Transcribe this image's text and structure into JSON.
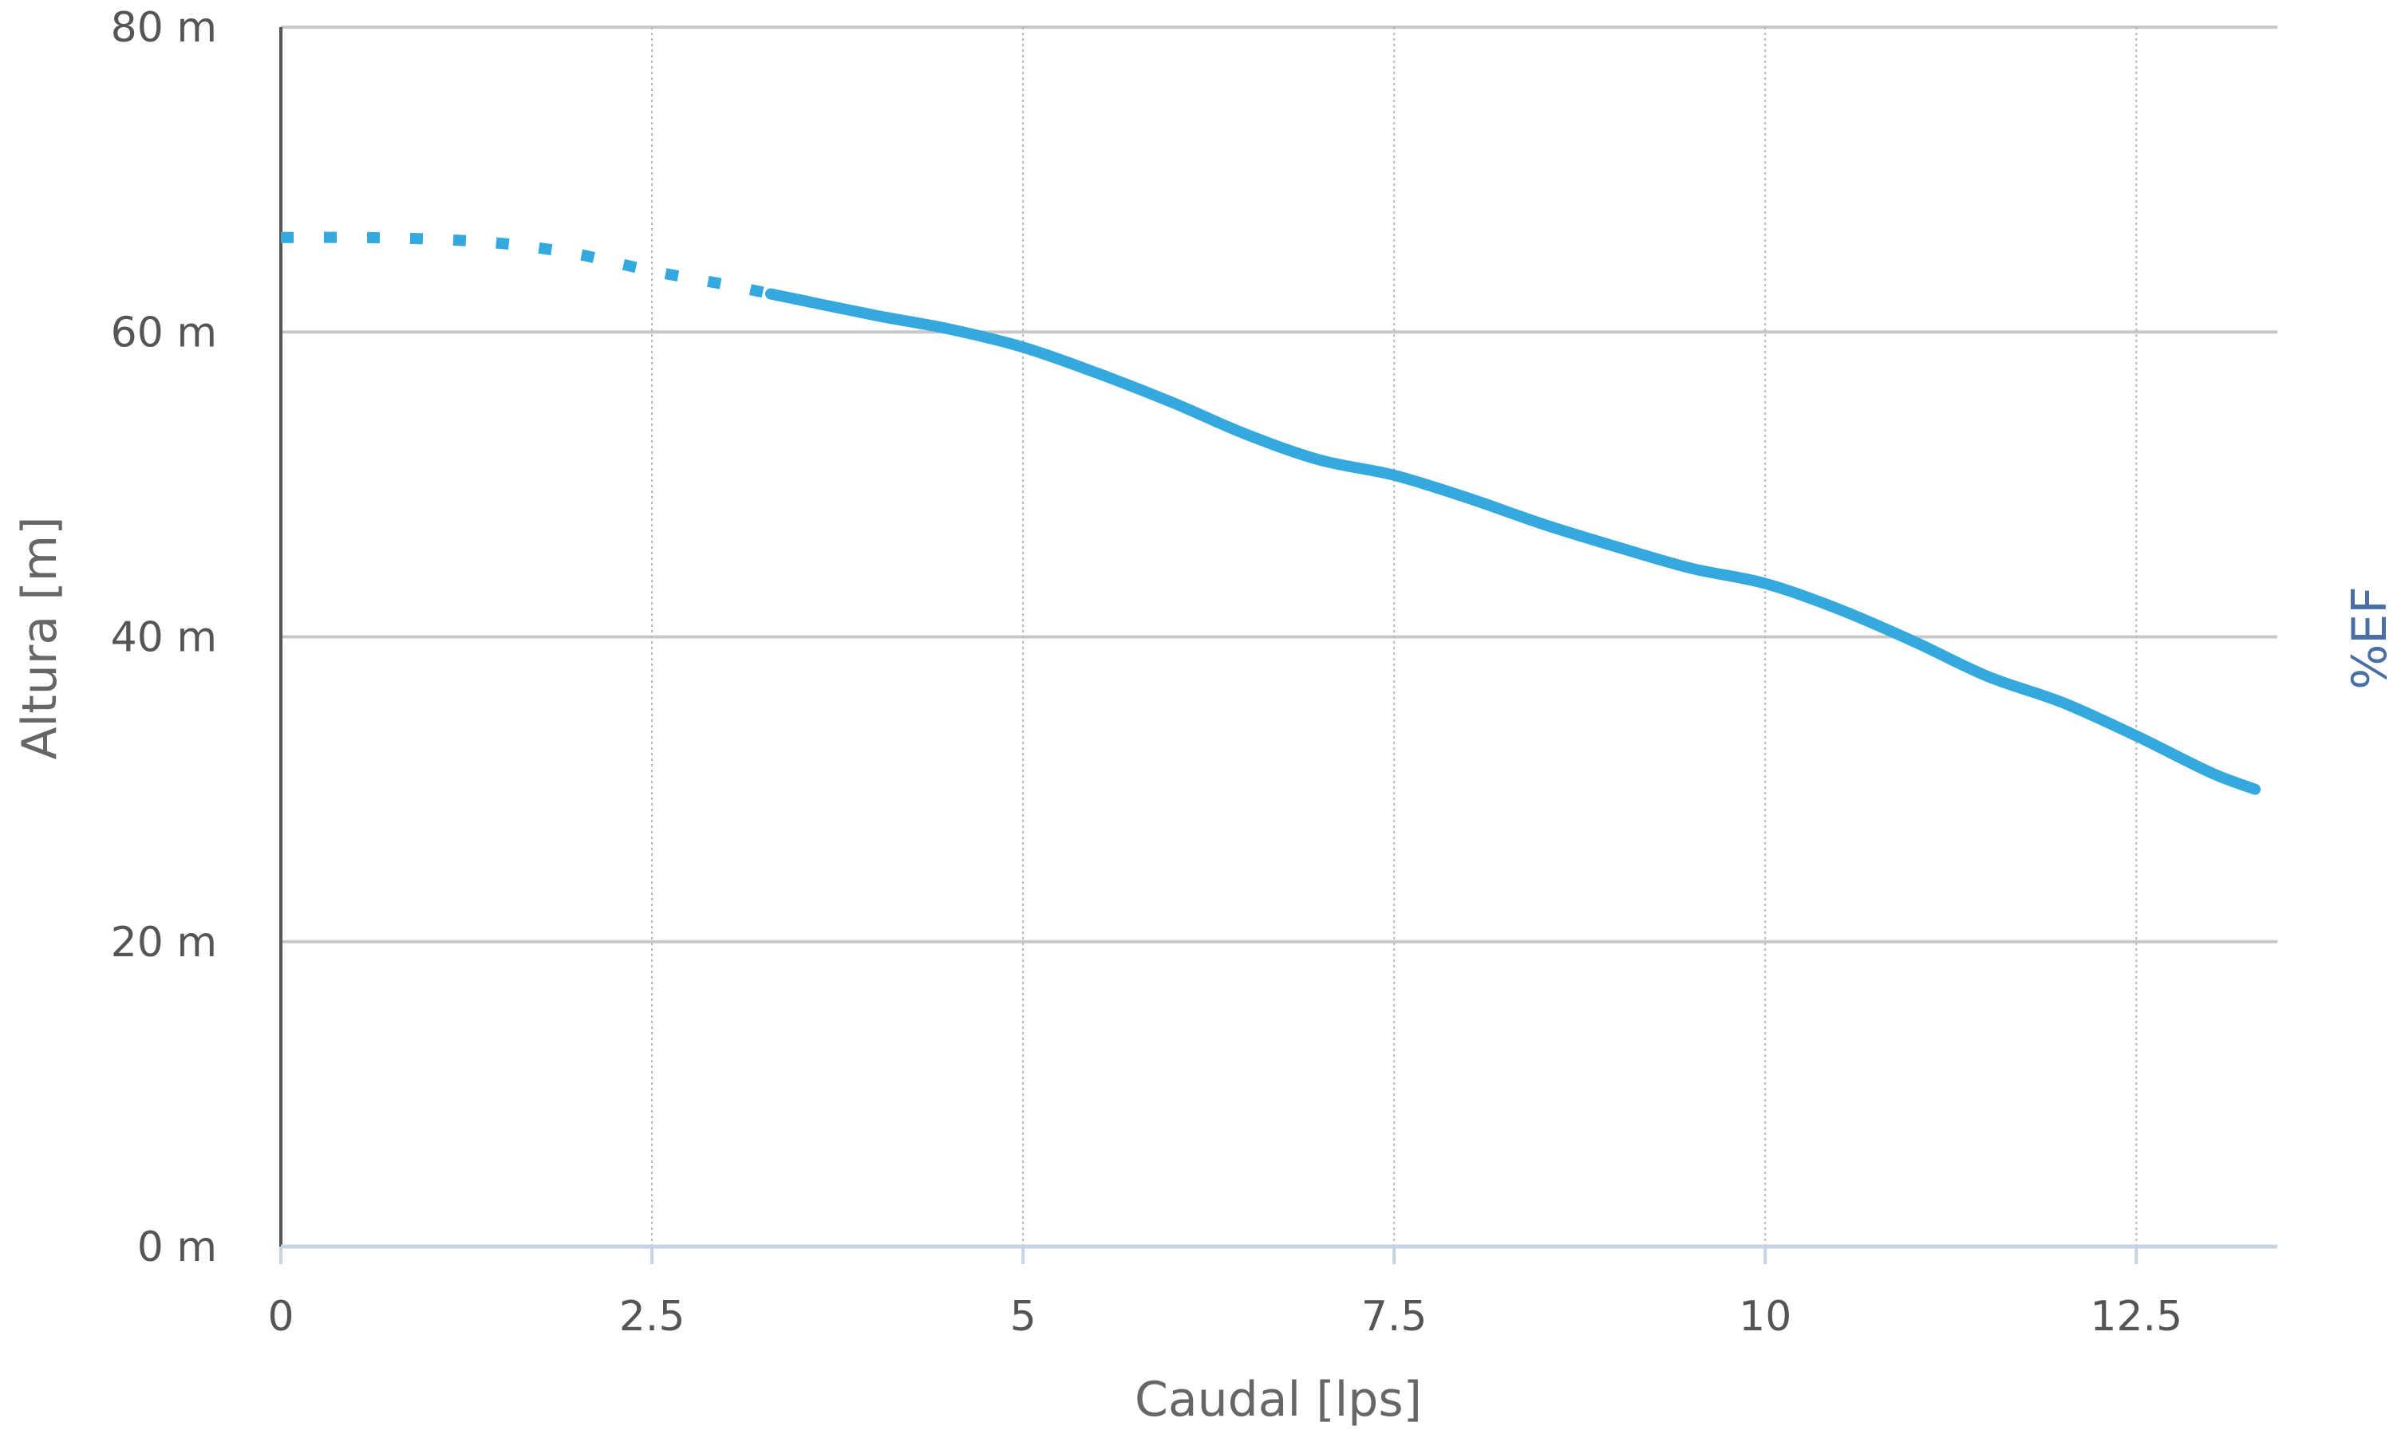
{
  "chart_data": {
    "type": "line",
    "title": "",
    "xlabel": "Caudal [lps]",
    "ylabel": "Altura [m]",
    "y2label": "%EF",
    "xlim": [
      0,
      13.45
    ],
    "ylim": [
      0,
      80
    ],
    "x_ticks": [
      "0",
      "2.5",
      "5",
      "7.5",
      "10",
      "12.5"
    ],
    "x_tick_values": [
      0,
      2.5,
      5,
      7.5,
      10,
      12.5
    ],
    "y_ticks": [
      "0 m",
      "20 m",
      "40 m",
      "60 m",
      "80 m"
    ],
    "y_tick_values": [
      0,
      20,
      40,
      60,
      80
    ],
    "grid": true,
    "colors": {
      "series": "#35a9dd",
      "y2label": "#4a6fa5",
      "grid": "#c8c8c8",
      "xaxis": "#c5d3e3",
      "yaxis": "#555555"
    },
    "series": [
      {
        "style": "dotted",
        "x": [
          0,
          0.5,
          1.0,
          1.5,
          2.0,
          2.5,
          3.0,
          3.3
        ],
        "y": [
          66.2,
          66.2,
          66.1,
          65.8,
          65.1,
          64.0,
          63.1,
          62.5
        ]
      },
      {
        "style": "solid",
        "x": [
          3.3,
          4.0,
          4.5,
          5.0,
          5.5,
          6.0,
          6.5,
          7.0,
          7.5,
          8.0,
          8.5,
          9.0,
          9.5,
          10.0,
          10.5,
          11.0,
          11.5,
          12.0,
          12.5,
          13.0,
          13.3
        ],
        "y": [
          62.5,
          61.1,
          60.2,
          59.0,
          57.3,
          55.4,
          53.3,
          51.6,
          50.6,
          49.1,
          47.4,
          45.9,
          44.5,
          43.5,
          41.8,
          39.7,
          37.4,
          35.7,
          33.5,
          31.1,
          30.0
        ]
      }
    ]
  }
}
